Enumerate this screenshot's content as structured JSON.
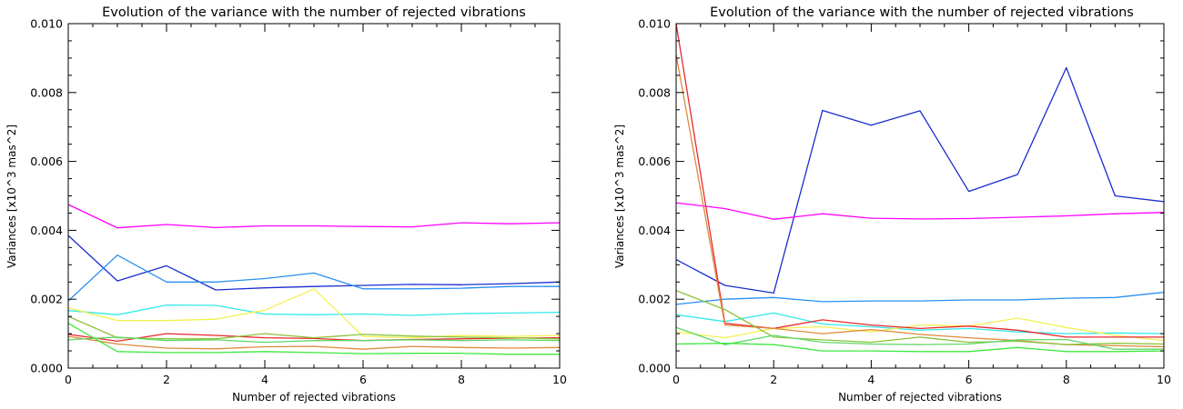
{
  "chart_data": [
    {
      "type": "line",
      "title": "Evolution of the variance with the number of rejected vibrations",
      "xlabel": "Number of rejected vibrations",
      "ylabel": "Variances [x10^3 mas^2]",
      "xlim": [
        0,
        10
      ],
      "ylim": [
        0.0,
        0.01
      ],
      "xticks": [
        "0",
        "2",
        "4",
        "6",
        "8",
        "10"
      ],
      "yticks": [
        "0.000",
        "0.002",
        "0.004",
        "0.006",
        "0.008",
        "0.010"
      ],
      "grid": false,
      "x": [
        0,
        1,
        2,
        3,
        4,
        5,
        6,
        7,
        8,
        9,
        10
      ],
      "series": [
        {
          "color": "#ff00ff",
          "values": [
            0.00475,
            0.00407,
            0.00417,
            0.00408,
            0.00413,
            0.00413,
            0.00411,
            0.0041,
            0.00422,
            0.00419,
            0.00422
          ]
        },
        {
          "color": "#1a2ccf",
          "values": [
            0.00385,
            0.00253,
            0.00297,
            0.00227,
            0.00233,
            0.00237,
            0.0024,
            0.00243,
            0.00242,
            0.00245,
            0.0025
          ]
        },
        {
          "color": "#2a8ff0",
          "values": [
            0.00195,
            0.00328,
            0.0025,
            0.0025,
            0.0026,
            0.00276,
            0.0023,
            0.0023,
            0.00232,
            0.00237,
            0.00237
          ]
        },
        {
          "color": "#33e8e8",
          "values": [
            0.00167,
            0.00155,
            0.00183,
            0.00182,
            0.00157,
            0.00155,
            0.00157,
            0.00153,
            0.00158,
            0.0016,
            0.00162
          ]
        },
        {
          "color": "#f4f050",
          "values": [
            0.00175,
            0.00138,
            0.00138,
            0.00142,
            0.00168,
            0.0023,
            0.00092,
            0.00088,
            0.00095,
            0.00092,
            0.00095
          ]
        },
        {
          "color": "#e8292e",
          "values": [
            0.00098,
            0.00078,
            0.001,
            0.00095,
            0.00088,
            0.00086,
            0.0008,
            0.00083,
            0.00085,
            0.00087,
            0.00088
          ]
        },
        {
          "color": "#dd8a3c",
          "values": [
            0.00092,
            0.0007,
            0.00058,
            0.00056,
            0.00062,
            0.00063,
            0.00055,
            0.00063,
            0.0006,
            0.00058,
            0.0006
          ]
        },
        {
          "color": "#8ac238",
          "values": [
            0.0015,
            0.00088,
            0.00085,
            0.00085,
            0.001,
            0.00088,
            0.00098,
            0.00093,
            0.0009,
            0.00088,
            0.00085
          ]
        },
        {
          "color": "#60d86a",
          "values": [
            0.00082,
            0.0009,
            0.0008,
            0.00082,
            0.00075,
            0.0008,
            0.0008,
            0.00082,
            0.0008,
            0.00082,
            0.0008
          ]
        },
        {
          "color": "#3ee83e",
          "values": [
            0.0013,
            0.00048,
            0.00045,
            0.00045,
            0.00048,
            0.00045,
            0.00042,
            0.00043,
            0.00043,
            0.0004,
            0.0004
          ]
        }
      ]
    },
    {
      "type": "line",
      "title": "Evolution of the variance with the number of rejected vibrations",
      "xlabel": "Number of rejected vibrations",
      "ylabel": "Variances [x10^3 mas^2]",
      "xlim": [
        0,
        10
      ],
      "ylim": [
        0.0,
        0.01
      ],
      "xticks": [
        "0",
        "2",
        "4",
        "6",
        "8",
        "10"
      ],
      "yticks": [
        "0.000",
        "0.002",
        "0.004",
        "0.006",
        "0.008",
        "0.010"
      ],
      "grid": false,
      "x": [
        0,
        1,
        2,
        3,
        4,
        5,
        6,
        7,
        8,
        9,
        10
      ],
      "series": [
        {
          "color": "#1a2ccf",
          "values": [
            0.00315,
            0.0024,
            0.00218,
            0.00748,
            0.00705,
            0.00747,
            0.00513,
            0.00562,
            0.00872,
            0.005,
            0.00483
          ]
        },
        {
          "color": "#ff00ff",
          "values": [
            0.0048,
            0.00463,
            0.00432,
            0.00448,
            0.00435,
            0.00433,
            0.00434,
            0.00438,
            0.00442,
            0.00448,
            0.00452
          ]
        },
        {
          "color": "#2a8ff0",
          "values": [
            0.00185,
            0.002,
            0.00205,
            0.00193,
            0.00195,
            0.00195,
            0.00198,
            0.00198,
            0.00203,
            0.00205,
            0.0022
          ]
        },
        {
          "color": "#33e8e8",
          "values": [
            0.00155,
            0.00135,
            0.0016,
            0.00128,
            0.0012,
            0.0011,
            0.00115,
            0.00105,
            0.001,
            0.00102,
            0.001
          ]
        },
        {
          "color": "#f4f050",
          "values": [
            0.00105,
            0.00088,
            0.00115,
            0.0012,
            0.00105,
            0.00125,
            0.00122,
            0.00145,
            0.00118,
            0.00095,
            0.0008
          ]
        },
        {
          "color": "#e8292e",
          "values": [
            0.01,
            0.0013,
            0.00115,
            0.0014,
            0.00125,
            0.00115,
            0.00122,
            0.0011,
            0.0009,
            0.0009,
            0.0009
          ]
        },
        {
          "color": "#dd8a3c",
          "values": [
            0.0091,
            0.00125,
            0.00115,
            0.001,
            0.00112,
            0.00098,
            0.00088,
            0.0008,
            0.00068,
            0.00065,
            0.00062
          ]
        },
        {
          "color": "#8ac238",
          "values": [
            0.00225,
            0.0017,
            0.0009,
            0.00082,
            0.00075,
            0.0009,
            0.00075,
            0.00078,
            0.00068,
            0.00072,
            0.0007
          ]
        },
        {
          "color": "#60d86a",
          "values": [
            0.00118,
            0.00068,
            0.00095,
            0.00075,
            0.0007,
            0.00068,
            0.0007,
            0.00082,
            0.00083,
            0.00055,
            0.00055
          ]
        },
        {
          "color": "#3ee83e",
          "values": [
            0.0007,
            0.00072,
            0.00068,
            0.0005,
            0.0005,
            0.00048,
            0.00048,
            0.0006,
            0.00048,
            0.00048,
            0.0005
          ]
        }
      ]
    }
  ]
}
